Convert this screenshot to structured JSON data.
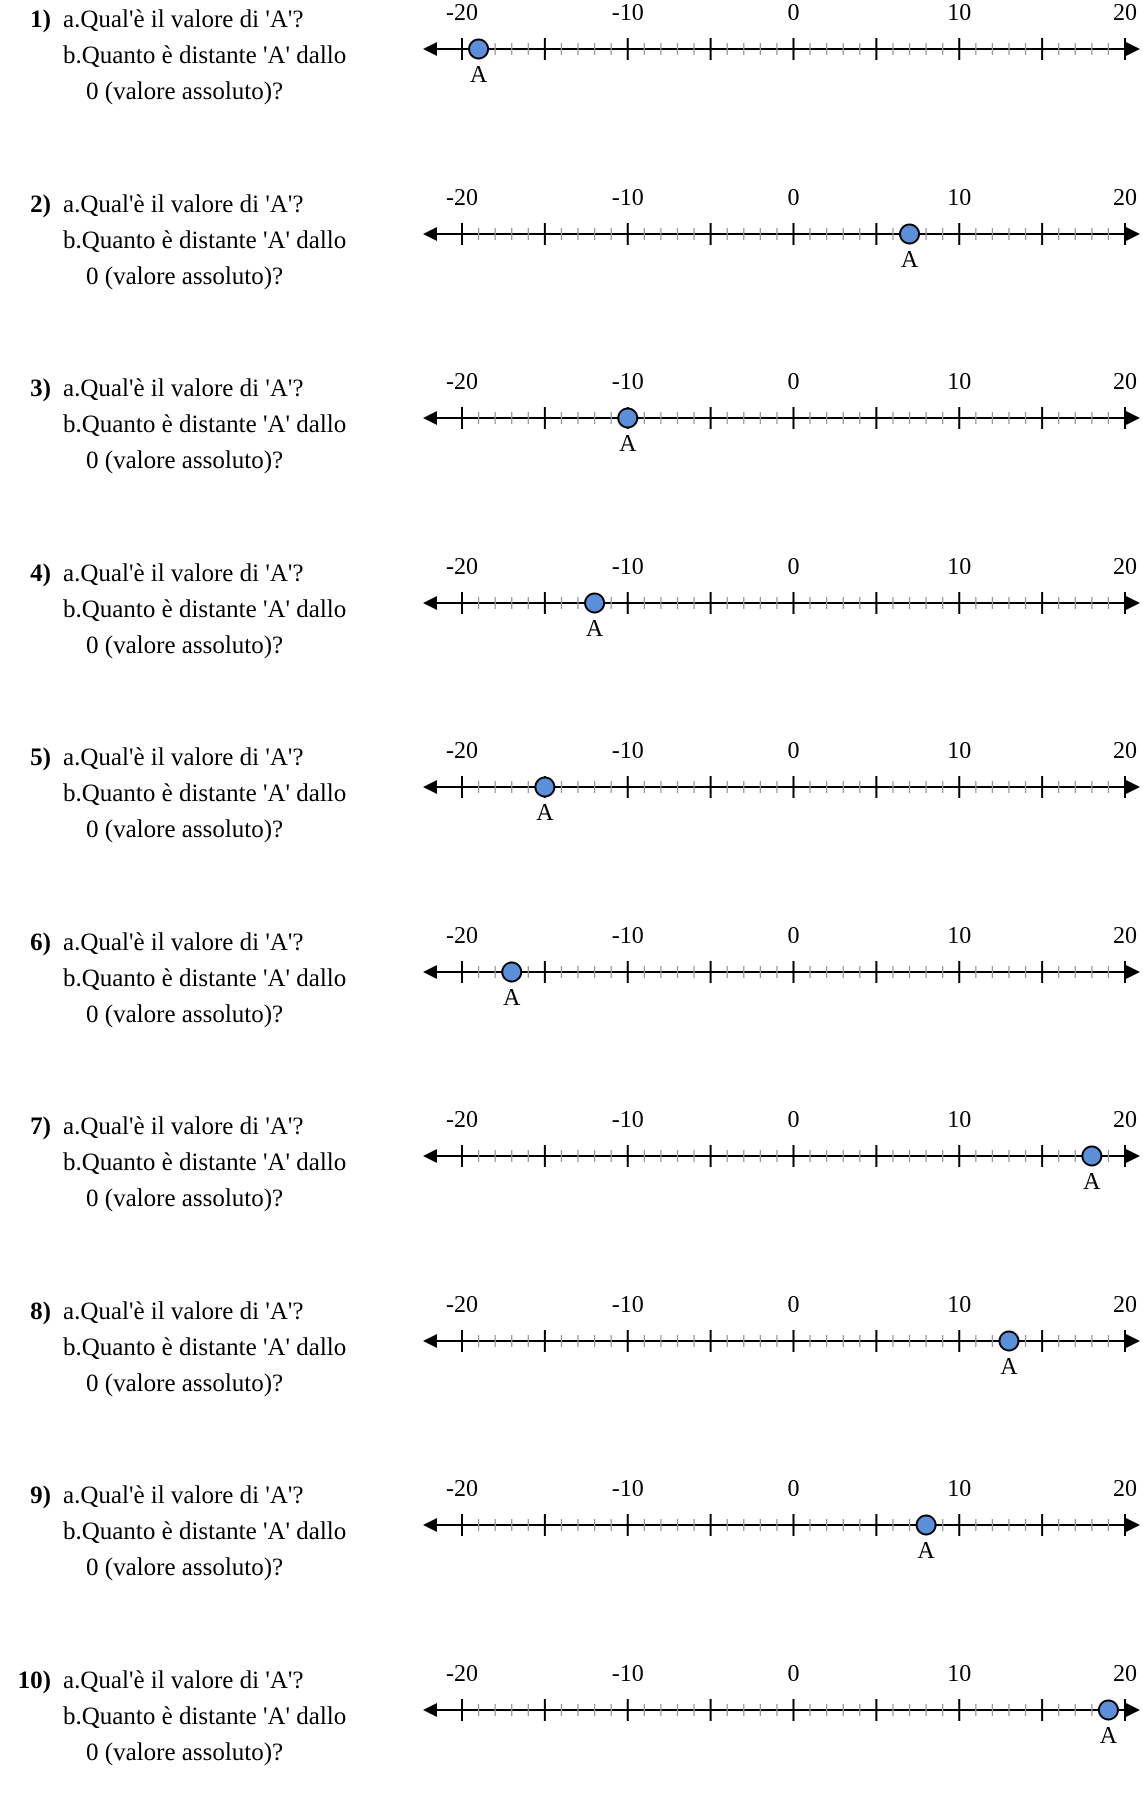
{
  "worksheet": {
    "problems": [
      {
        "number": "1)",
        "line_a": "a.Qual'è il valore di 'A'?",
        "line_b": "b.Quanto è distante 'A' dallo",
        "line_c": "0 (valore assoluto)?",
        "point_label": "A",
        "point_value": -19
      },
      {
        "number": "2)",
        "line_a": "a.Qual'è il valore di 'A'?",
        "line_b": "b.Quanto è distante 'A' dallo",
        "line_c": "0 (valore assoluto)?",
        "point_label": "A",
        "point_value": 7
      },
      {
        "number": "3)",
        "line_a": "a.Qual'è il valore di 'A'?",
        "line_b": "b.Quanto è distante 'A' dallo",
        "line_c": "0 (valore assoluto)?",
        "point_label": "A",
        "point_value": -10
      },
      {
        "number": "4)",
        "line_a": "a.Qual'è il valore di 'A'?",
        "line_b": "b.Quanto è distante 'A' dallo",
        "line_c": "0 (valore assoluto)?",
        "point_label": "A",
        "point_value": -12
      },
      {
        "number": "5)",
        "line_a": "a.Qual'è il valore di 'A'?",
        "line_b": "b.Quanto è distante 'A' dallo",
        "line_c": "0 (valore assoluto)?",
        "point_label": "A",
        "point_value": -15
      },
      {
        "number": "6)",
        "line_a": "a.Qual'è il valore di 'A'?",
        "line_b": "b.Quanto è distante 'A' dallo",
        "line_c": "0 (valore assoluto)?",
        "point_label": "A",
        "point_value": -17
      },
      {
        "number": "7)",
        "line_a": "a.Qual'è il valore di 'A'?",
        "line_b": "b.Quanto è distante 'A' dallo",
        "line_c": "0 (valore assoluto)?",
        "point_label": "A",
        "point_value": 18
      },
      {
        "number": "8)",
        "line_a": "a.Qual'è il valore di 'A'?",
        "line_b": "b.Quanto è distante 'A' dallo",
        "line_c": "0 (valore assoluto)?",
        "point_label": "A",
        "point_value": 13
      },
      {
        "number": "9)",
        "line_a": "a.Qual'è il valore di 'A'?",
        "line_b": "b.Quanto è distante 'A' dallo",
        "line_c": "0 (valore assoluto)?",
        "point_label": "A",
        "point_value": 8
      },
      {
        "number": "10)",
        "line_a": "a.Qual'è il valore di 'A'?",
        "line_b": "b.Quanto è distante 'A' dallo",
        "line_c": "0 (valore assoluto)?",
        "point_label": "A",
        "point_value": 19
      }
    ],
    "number_line": {
      "min": -20,
      "max": 20,
      "major_step": 5,
      "minor_step": 1,
      "tick_labels": [
        "-20",
        "-10",
        "0",
        "10",
        "20"
      ],
      "tick_label_values": [
        -20,
        -10,
        0,
        10,
        20
      ]
    },
    "colors": {
      "point_fill": "#5b8fd9",
      "line": "#000000",
      "minor_tick": "#999999"
    }
  }
}
